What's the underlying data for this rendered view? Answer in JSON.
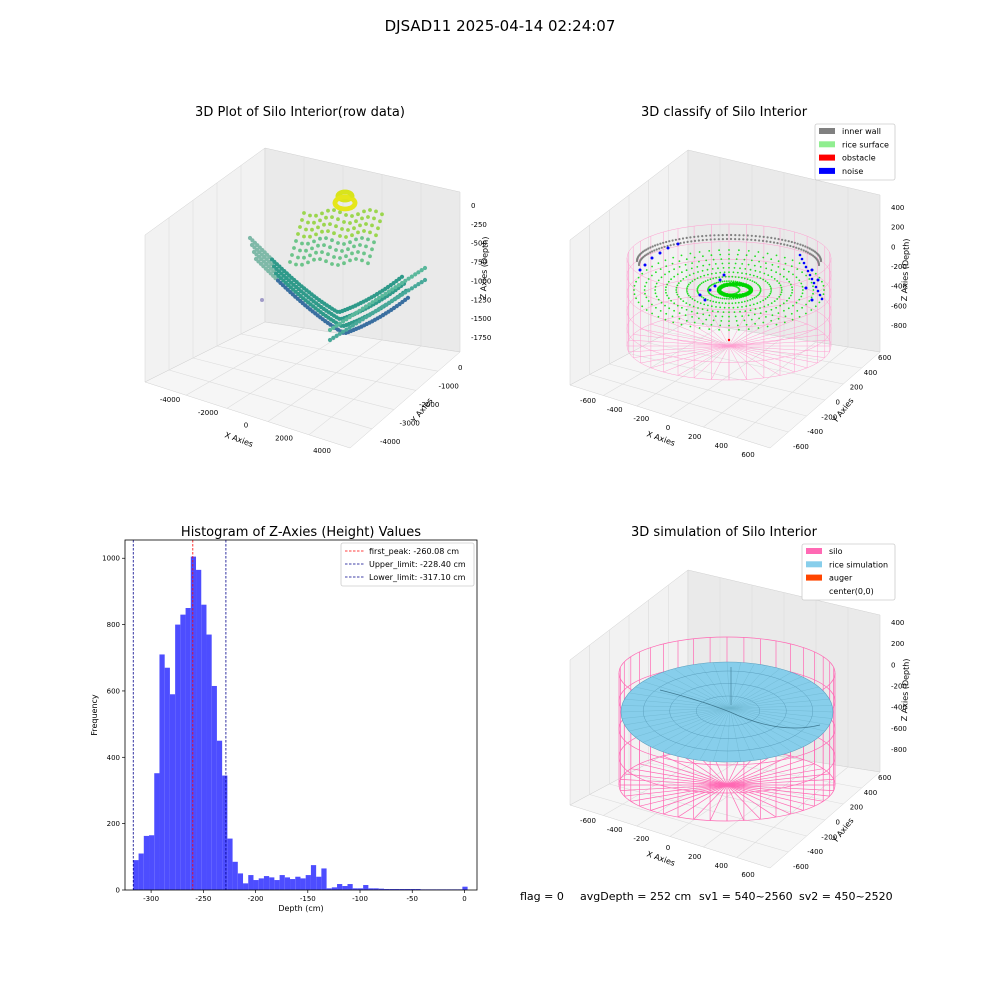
{
  "figure": {
    "suptitle": "DJSAD11 2025-04-14 02:24:07",
    "status": {
      "flag": "flag = 0",
      "avgdepth": "avgDepth = 252 cm",
      "sv1": "sv1 = 540~2560",
      "sv2": "sv2 = 450~2520"
    }
  },
  "colors": {
    "inner_wall": "#808080",
    "rice_surface": "#90ee90",
    "obstacle": "#ff0000",
    "noise": "#0000ff",
    "silo": "#ff69b4",
    "rice_simulation": "#87ceeb",
    "auger": "#ff4500",
    "hist_bar": "#4d4dff",
    "first_peak": "#ff0000",
    "limits": "#00008b"
  },
  "chart_data": [
    {
      "type": "scatter",
      "projection": "3d",
      "title": "3D Plot of Silo Interior(row data)",
      "xlabel": "X Axies",
      "ylabel": "Y Axies",
      "zlabel": "Z Axies (Depth)",
      "xticks": [
        "-4000",
        "-2000",
        "0",
        "2000",
        "4000"
      ],
      "yticks": [
        "-4000",
        "-3000",
        "-2000",
        "-1000",
        "0"
      ],
      "zticks": [
        "0",
        "-250",
        "-500",
        "-750",
        "-1000",
        "-1250",
        "-1500",
        "-1750"
      ]
    },
    {
      "type": "scatter",
      "projection": "3d",
      "title": "3D classify of Silo Interior",
      "xlabel": "X Axies",
      "ylabel": "Y Axies",
      "zlabel": "Z Axies (Depth)",
      "xticks": [
        "-600",
        "-400",
        "-200",
        "0",
        "200",
        "400",
        "600"
      ],
      "yticks": [
        "-600",
        "-400",
        "-200",
        "0",
        "200",
        "400",
        "600"
      ],
      "zticks": [
        "400",
        "200",
        "0",
        "-200",
        "-400",
        "-600",
        "-800"
      ],
      "legend": {
        "placement": "top-right",
        "entries": [
          {
            "label": "inner wall",
            "color": "#808080"
          },
          {
            "label": "rice surface",
            "color": "#90ee90"
          },
          {
            "label": "obstacle",
            "color": "#ff0000"
          },
          {
            "label": "noise",
            "color": "#0000ff"
          }
        ]
      }
    },
    {
      "type": "bar",
      "title": "Histogram of Z-Axies (Height) Values",
      "xlabel": "Depth (cm)",
      "ylabel": "Frequency",
      "xlim": [
        -325,
        12
      ],
      "ylim": [
        0,
        1055
      ],
      "xticks": [
        -300,
        -250,
        -200,
        -150,
        -100,
        -50,
        0
      ],
      "yticks": [
        0,
        200,
        400,
        600,
        800,
        1000
      ],
      "bin_width": 5,
      "bins": [
        {
          "x0": -317,
          "v": 90
        },
        {
          "x0": -312,
          "v": 110
        },
        {
          "x0": -307,
          "v": 163
        },
        {
          "x0": -302,
          "v": 165
        },
        {
          "x0": -297,
          "v": 352
        },
        {
          "x0": -292,
          "v": 710
        },
        {
          "x0": -287,
          "v": 670
        },
        {
          "x0": -282,
          "v": 590
        },
        {
          "x0": -277,
          "v": 800
        },
        {
          "x0": -272,
          "v": 830
        },
        {
          "x0": -267,
          "v": 850
        },
        {
          "x0": -262,
          "v": 1005
        },
        {
          "x0": -257,
          "v": 965
        },
        {
          "x0": -252,
          "v": 860
        },
        {
          "x0": -247,
          "v": 770
        },
        {
          "x0": -242,
          "v": 615
        },
        {
          "x0": -237,
          "v": 450
        },
        {
          "x0": -232,
          "v": 345
        },
        {
          "x0": -227,
          "v": 155
        },
        {
          "x0": -222,
          "v": 85
        },
        {
          "x0": -217,
          "v": 50
        },
        {
          "x0": -212,
          "v": 20
        },
        {
          "x0": -207,
          "v": 45
        },
        {
          "x0": -202,
          "v": 30
        },
        {
          "x0": -197,
          "v": 35
        },
        {
          "x0": -192,
          "v": 42
        },
        {
          "x0": -187,
          "v": 38
        },
        {
          "x0": -182,
          "v": 30
        },
        {
          "x0": -177,
          "v": 45
        },
        {
          "x0": -172,
          "v": 38
        },
        {
          "x0": -167,
          "v": 33
        },
        {
          "x0": -162,
          "v": 40
        },
        {
          "x0": -157,
          "v": 35
        },
        {
          "x0": -152,
          "v": 45
        },
        {
          "x0": -147,
          "v": 75
        },
        {
          "x0": -142,
          "v": 40
        },
        {
          "x0": -137,
          "v": 65
        },
        {
          "x0": -132,
          "v": 5
        },
        {
          "x0": -127,
          "v": 8
        },
        {
          "x0": -122,
          "v": 18
        },
        {
          "x0": -117,
          "v": 12
        },
        {
          "x0": -112,
          "v": 18
        },
        {
          "x0": -107,
          "v": 5
        },
        {
          "x0": -102,
          "v": 5
        },
        {
          "x0": -97,
          "v": 15
        },
        {
          "x0": -92,
          "v": 5
        },
        {
          "x0": -87,
          "v": 5
        },
        {
          "x0": -82,
          "v": 4
        },
        {
          "x0": -77,
          "v": 3
        },
        {
          "x0": -72,
          "v": 3
        },
        {
          "x0": -67,
          "v": 3
        },
        {
          "x0": -62,
          "v": 3
        },
        {
          "x0": -57,
          "v": 3
        },
        {
          "x0": -52,
          "v": 3
        },
        {
          "x0": -47,
          "v": 3
        },
        {
          "x0": -42,
          "v": 2
        },
        {
          "x0": -37,
          "v": 2
        },
        {
          "x0": -32,
          "v": 2
        },
        {
          "x0": -27,
          "v": 2
        },
        {
          "x0": -22,
          "v": 2
        },
        {
          "x0": -17,
          "v": 2
        },
        {
          "x0": -12,
          "v": 2
        },
        {
          "x0": -7,
          "v": 2
        },
        {
          "x0": -2,
          "v": 10
        }
      ],
      "vlines": [
        {
          "x": -260.08,
          "label": "first_peak: -260.08 cm",
          "color": "#ff0000"
        },
        {
          "x": -228.4,
          "label": "Upper_limit: -228.40 cm",
          "color": "#00008b"
        },
        {
          "x": -317.1,
          "label": "Lower_limit: -317.10 cm",
          "color": "#00008b"
        }
      ],
      "legend": {
        "placement": "top-right"
      }
    },
    {
      "type": "surface",
      "projection": "3d",
      "title": "3D simulation of Silo Interior",
      "xlabel": "X Axies",
      "ylabel": "Y Axies",
      "zlabel": "Z Axies (Depth)",
      "xticks": [
        "-600",
        "-400",
        "-200",
        "0",
        "200",
        "400",
        "600"
      ],
      "yticks": [
        "-600",
        "-400",
        "-200",
        "0",
        "200",
        "400",
        "600"
      ],
      "zticks": [
        "400",
        "200",
        "0",
        "-200",
        "-400",
        "-600",
        "-800"
      ],
      "legend": {
        "placement": "top-right",
        "entries": [
          {
            "label": "silo",
            "color": "#ff69b4"
          },
          {
            "label": "rice simulation",
            "color": "#87ceeb"
          },
          {
            "label": "auger",
            "color": "#ff4500"
          },
          {
            "label": "center(0,0)",
            "color": "#ffffff"
          }
        ]
      }
    }
  ]
}
